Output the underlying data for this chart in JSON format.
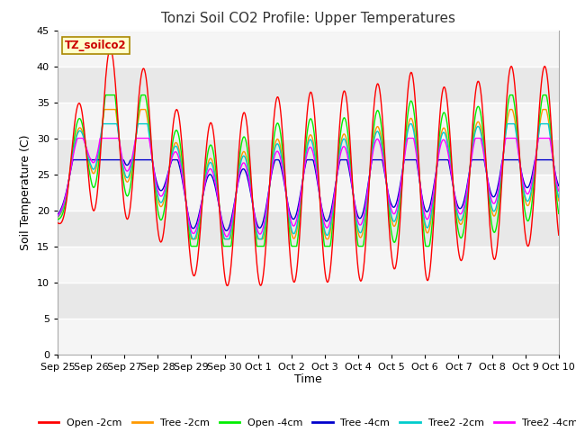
{
  "title": "Tonzi Soil CO2 Profile: Upper Temperatures",
  "xlabel": "Time",
  "ylabel": "Soil Temperature (C)",
  "ylim": [
    0,
    45
  ],
  "yticks": [
    0,
    5,
    10,
    15,
    20,
    25,
    30,
    35,
    40,
    45
  ],
  "xlabels": [
    "Sep 25",
    "Sep 26",
    "Sep 27",
    "Sep 28",
    "Sep 29",
    "Sep 30",
    "Oct 1",
    "Oct 2",
    "Oct 3",
    "Oct 4",
    "Oct 5",
    "Oct 6",
    "Oct 7",
    "Oct 8",
    "Oct 9",
    "Oct 10"
  ],
  "watermark_text": "TZ_soilco2",
  "watermark_bg": "#ffffcc",
  "watermark_border": "#aa8800",
  "background_plot_light": "#f0f0f0",
  "background_plot_dark": "#e0e0e0",
  "background_fig": "#ffffff",
  "series_colors": [
    "#ff0000",
    "#ff9900",
    "#00ee00",
    "#0000cc",
    "#00cccc",
    "#ff00ff"
  ],
  "series_labels": [
    "Open -2cm",
    "Tree -2cm",
    "Open -4cm",
    "Tree -4cm",
    "Tree2 -2cm",
    "Tree2 -4cm"
  ],
  "title_fontsize": 11,
  "axis_label_fontsize": 9,
  "tick_fontsize": 8,
  "legend_fontsize": 8
}
